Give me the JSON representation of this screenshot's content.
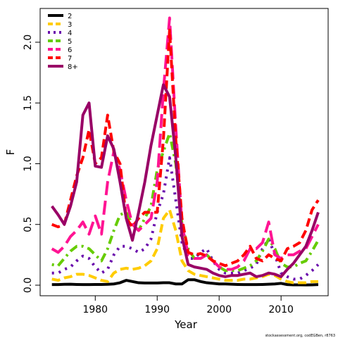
{
  "chart_data": {
    "type": "line",
    "xlabel": "Year",
    "ylabel": "F",
    "footnote": "stockassessment.org, codEGBen, r8763",
    "x": [
      1973,
      1974,
      1975,
      1976,
      1977,
      1978,
      1979,
      1980,
      1981,
      1982,
      1983,
      1984,
      1985,
      1986,
      1987,
      1988,
      1989,
      1990,
      1991,
      1992,
      1993,
      1994,
      1995,
      1996,
      1997,
      1998,
      1999,
      2000,
      2001,
      2002,
      2003,
      2004,
      2005,
      2006,
      2007,
      2008,
      2009,
      2010,
      2011,
      2012,
      2013,
      2014,
      2015,
      2016
    ],
    "xlim": [
      1971.1,
      2017.6
    ],
    "xticks": [
      1980,
      1990,
      2000,
      2010
    ],
    "ylim": [
      -0.087,
      2.278
    ],
    "yticks": [
      {
        "value": 0,
        "label": "0.0"
      },
      {
        "value": 0.5,
        "label": "0.5"
      },
      {
        "value": 1,
        "label": "1.0"
      },
      {
        "value": 1.5,
        "label": "1.5"
      },
      {
        "value": 2,
        "label": "2.0"
      }
    ],
    "legend": "top-left",
    "series": [
      {
        "name": "2",
        "color": "#000000",
        "dash": "solid",
        "values": [
          0.005,
          0.005,
          0.007,
          0.008,
          0.006,
          0.005,
          0.005,
          0.006,
          0.006,
          0.007,
          0.01,
          0.02,
          0.04,
          0.03,
          0.02,
          0.018,
          0.018,
          0.018,
          0.02,
          0.02,
          0.01,
          0.01,
          0.045,
          0.045,
          0.03,
          0.02,
          0.015,
          0.01,
          0.01,
          0.008,
          0.006,
          0.005,
          0.005,
          0.005,
          0.006,
          0.008,
          0.01,
          0.015,
          0.005,
          0.003,
          0.003,
          0.002,
          0.003,
          0.005
        ]
      },
      {
        "name": "3",
        "color": "#ffcc00",
        "dash": "dashed",
        "values": [
          0.05,
          0.04,
          0.06,
          0.07,
          0.09,
          0.09,
          0.08,
          0.06,
          0.04,
          0.03,
          0.1,
          0.13,
          0.14,
          0.13,
          0.14,
          0.16,
          0.2,
          0.3,
          0.55,
          0.62,
          0.45,
          0.2,
          0.12,
          0.09,
          0.08,
          0.07,
          0.06,
          0.05,
          0.04,
          0.04,
          0.04,
          0.05,
          0.05,
          0.06,
          0.07,
          0.09,
          0.08,
          0.05,
          0.03,
          0.02,
          0.02,
          0.02,
          0.03,
          0.03
        ]
      },
      {
        "name": "4",
        "color": "#6a0dad",
        "dash": "dotted",
        "values": [
          0.1,
          0.1,
          0.13,
          0.15,
          0.2,
          0.24,
          0.22,
          0.15,
          0.1,
          0.13,
          0.25,
          0.32,
          0.32,
          0.3,
          0.27,
          0.3,
          0.38,
          0.6,
          0.75,
          1.05,
          0.7,
          0.35,
          0.22,
          0.22,
          0.27,
          0.3,
          0.2,
          0.13,
          0.1,
          0.1,
          0.1,
          0.12,
          0.14,
          0.17,
          0.3,
          0.38,
          0.25,
          0.1,
          0.07,
          0.05,
          0.05,
          0.08,
          0.12,
          0.17
        ]
      },
      {
        "name": "5",
        "color": "#66cc00",
        "dash": "dotdash",
        "values": [
          0.17,
          0.16,
          0.22,
          0.28,
          0.32,
          0.32,
          0.3,
          0.25,
          0.2,
          0.3,
          0.45,
          0.58,
          0.6,
          0.5,
          0.45,
          0.55,
          0.65,
          0.95,
          1.1,
          1.25,
          1.0,
          0.5,
          0.3,
          0.22,
          0.22,
          0.25,
          0.2,
          0.15,
          0.12,
          0.12,
          0.12,
          0.14,
          0.16,
          0.2,
          0.28,
          0.38,
          0.3,
          0.18,
          0.15,
          0.15,
          0.18,
          0.2,
          0.28,
          0.37
        ]
      },
      {
        "name": "6",
        "color": "#ff1493",
        "dash": "longdash",
        "values": [
          0.3,
          0.27,
          0.32,
          0.4,
          0.45,
          0.52,
          0.42,
          0.57,
          0.42,
          0.85,
          1.1,
          0.95,
          0.7,
          0.5,
          0.45,
          0.5,
          0.55,
          0.85,
          1.6,
          2.2,
          1.3,
          0.5,
          0.25,
          0.22,
          0.22,
          0.25,
          0.2,
          0.15,
          0.13,
          0.13,
          0.15,
          0.2,
          0.3,
          0.3,
          0.35,
          0.52,
          0.25,
          0.22,
          0.25,
          0.25,
          0.28,
          0.3,
          0.4,
          0.5
        ]
      },
      {
        "name": "7",
        "color": "#ff0000",
        "dash": "dashed",
        "values": [
          0.5,
          0.48,
          0.5,
          0.7,
          0.9,
          1.05,
          1.28,
          1.0,
          1.05,
          1.4,
          1.1,
          1.0,
          0.55,
          0.48,
          0.55,
          0.6,
          0.6,
          0.6,
          1.2,
          2.1,
          1.2,
          0.55,
          0.27,
          0.25,
          0.26,
          0.24,
          0.2,
          0.18,
          0.16,
          0.18,
          0.2,
          0.25,
          0.32,
          0.22,
          0.2,
          0.25,
          0.22,
          0.2,
          0.3,
          0.32,
          0.35,
          0.45,
          0.62,
          0.7
        ]
      },
      {
        "name": "8+",
        "color": "#990066",
        "dash": "solid",
        "values": [
          0.65,
          0.58,
          0.5,
          0.65,
          0.85,
          1.4,
          1.5,
          0.98,
          0.97,
          1.23,
          1.12,
          0.85,
          0.55,
          0.37,
          0.6,
          0.85,
          1.15,
          1.4,
          1.65,
          1.55,
          1.05,
          0.4,
          0.17,
          0.15,
          0.14,
          0.13,
          0.1,
          0.08,
          0.07,
          0.08,
          0.08,
          0.09,
          0.1,
          0.07,
          0.08,
          0.1,
          0.09,
          0.07,
          0.13,
          0.18,
          0.25,
          0.32,
          0.45,
          0.6
        ]
      }
    ]
  }
}
